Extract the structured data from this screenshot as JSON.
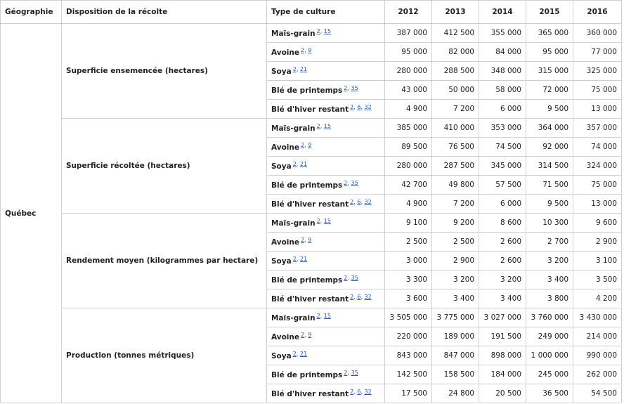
{
  "table": {
    "headers": [
      "Géographie",
      "Disposition de la récolte",
      "Type de culture",
      "2012",
      "2013",
      "2014",
      "2015",
      "2016"
    ],
    "geography": "Québec",
    "note_separator": ", ",
    "groups": [
      {
        "label": "Superficie ensemencée (hectares)",
        "rows": [
          {
            "crop": "Maïs-grain",
            "notes": [
              "2",
              "15"
            ],
            "values": [
              "387 000",
              "412 500",
              "355 000",
              "365 000",
              "360 000"
            ]
          },
          {
            "crop": "Avoine",
            "notes": [
              "2",
              "9"
            ],
            "values": [
              "95 000",
              "82 000",
              "84 000",
              "95 000",
              "77 000"
            ]
          },
          {
            "crop": "Soya",
            "notes": [
              "2",
              "21"
            ],
            "values": [
              "280 000",
              "288 500",
              "348 000",
              "315 000",
              "325 000"
            ]
          },
          {
            "crop": "Blé de printemps",
            "notes": [
              "2",
              "35"
            ],
            "values": [
              "43 000",
              "50 000",
              "58 000",
              "72 000",
              "75 000"
            ]
          },
          {
            "crop": "Blé d'hiver restant",
            "notes": [
              "2",
              "6",
              "32"
            ],
            "values": [
              "4 900",
              "7 200",
              "6 000",
              "9 500",
              "13 000"
            ]
          }
        ]
      },
      {
        "label": "Superficie récoltée (hectares)",
        "rows": [
          {
            "crop": "Maïs-grain",
            "notes": [
              "2",
              "15"
            ],
            "values": [
              "385 000",
              "410 000",
              "353 000",
              "364 000",
              "357 000"
            ]
          },
          {
            "crop": "Avoine",
            "notes": [
              "2",
              "9"
            ],
            "values": [
              "89 500",
              "76 500",
              "74 500",
              "92 000",
              "74 000"
            ]
          },
          {
            "crop": "Soya",
            "notes": [
              "2",
              "21"
            ],
            "values": [
              "280 000",
              "287 500",
              "345 000",
              "314 500",
              "324 000"
            ]
          },
          {
            "crop": "Blé de printemps",
            "notes": [
              "2",
              "35"
            ],
            "values": [
              "42 700",
              "49 800",
              "57 500",
              "71 500",
              "75 000"
            ]
          },
          {
            "crop": "Blé d'hiver restant",
            "notes": [
              "2",
              "6",
              "32"
            ],
            "values": [
              "4 900",
              "7 200",
              "6 000",
              "9 500",
              "13 000"
            ]
          }
        ]
      },
      {
        "label": "Rendement moyen (kilogrammes par hectare)",
        "rows": [
          {
            "crop": "Maïs-grain",
            "notes": [
              "2",
              "15"
            ],
            "values": [
              "9 100",
              "9 200",
              "8 600",
              "10 300",
              "9 600"
            ]
          },
          {
            "crop": "Avoine",
            "notes": [
              "2",
              "9"
            ],
            "values": [
              "2 500",
              "2 500",
              "2 600",
              "2 700",
              "2 900"
            ]
          },
          {
            "crop": "Soya",
            "notes": [
              "2",
              "21"
            ],
            "values": [
              "3 000",
              "2 900",
              "2 600",
              "3 200",
              "3 100"
            ]
          },
          {
            "crop": "Blé de printemps",
            "notes": [
              "2",
              "35"
            ],
            "values": [
              "3 300",
              "3 200",
              "3 200",
              "3 400",
              "3 500"
            ]
          },
          {
            "crop": "Blé d'hiver restant",
            "notes": [
              "2",
              "6",
              "32"
            ],
            "values": [
              "3 600",
              "3 400",
              "3 400",
              "3 800",
              "4 200"
            ]
          }
        ]
      },
      {
        "label": "Production (tonnes métriques)",
        "rows": [
          {
            "crop": "Maïs-grain",
            "notes": [
              "2",
              "15"
            ],
            "values": [
              "3 505 000",
              "3 775 000",
              "3 027 000",
              "3 760 000",
              "3 430 000"
            ]
          },
          {
            "crop": "Avoine",
            "notes": [
              "2",
              "9"
            ],
            "values": [
              "220 000",
              "189 000",
              "191 500",
              "249 000",
              "214 000"
            ]
          },
          {
            "crop": "Soya",
            "notes": [
              "2",
              "21"
            ],
            "values": [
              "843 000",
              "847 000",
              "898 000",
              "1 000 000",
              "990 000"
            ]
          },
          {
            "crop": "Blé de printemps",
            "notes": [
              "2",
              "35"
            ],
            "values": [
              "142 500",
              "158 500",
              "184 000",
              "245 000",
              "262 000"
            ]
          },
          {
            "crop": "Blé d'hiver restant",
            "notes": [
              "2",
              "6",
              "32"
            ],
            "values": [
              "17 500",
              "24 800",
              "20 500",
              "36 500",
              "54 500"
            ]
          }
        ]
      }
    ]
  }
}
